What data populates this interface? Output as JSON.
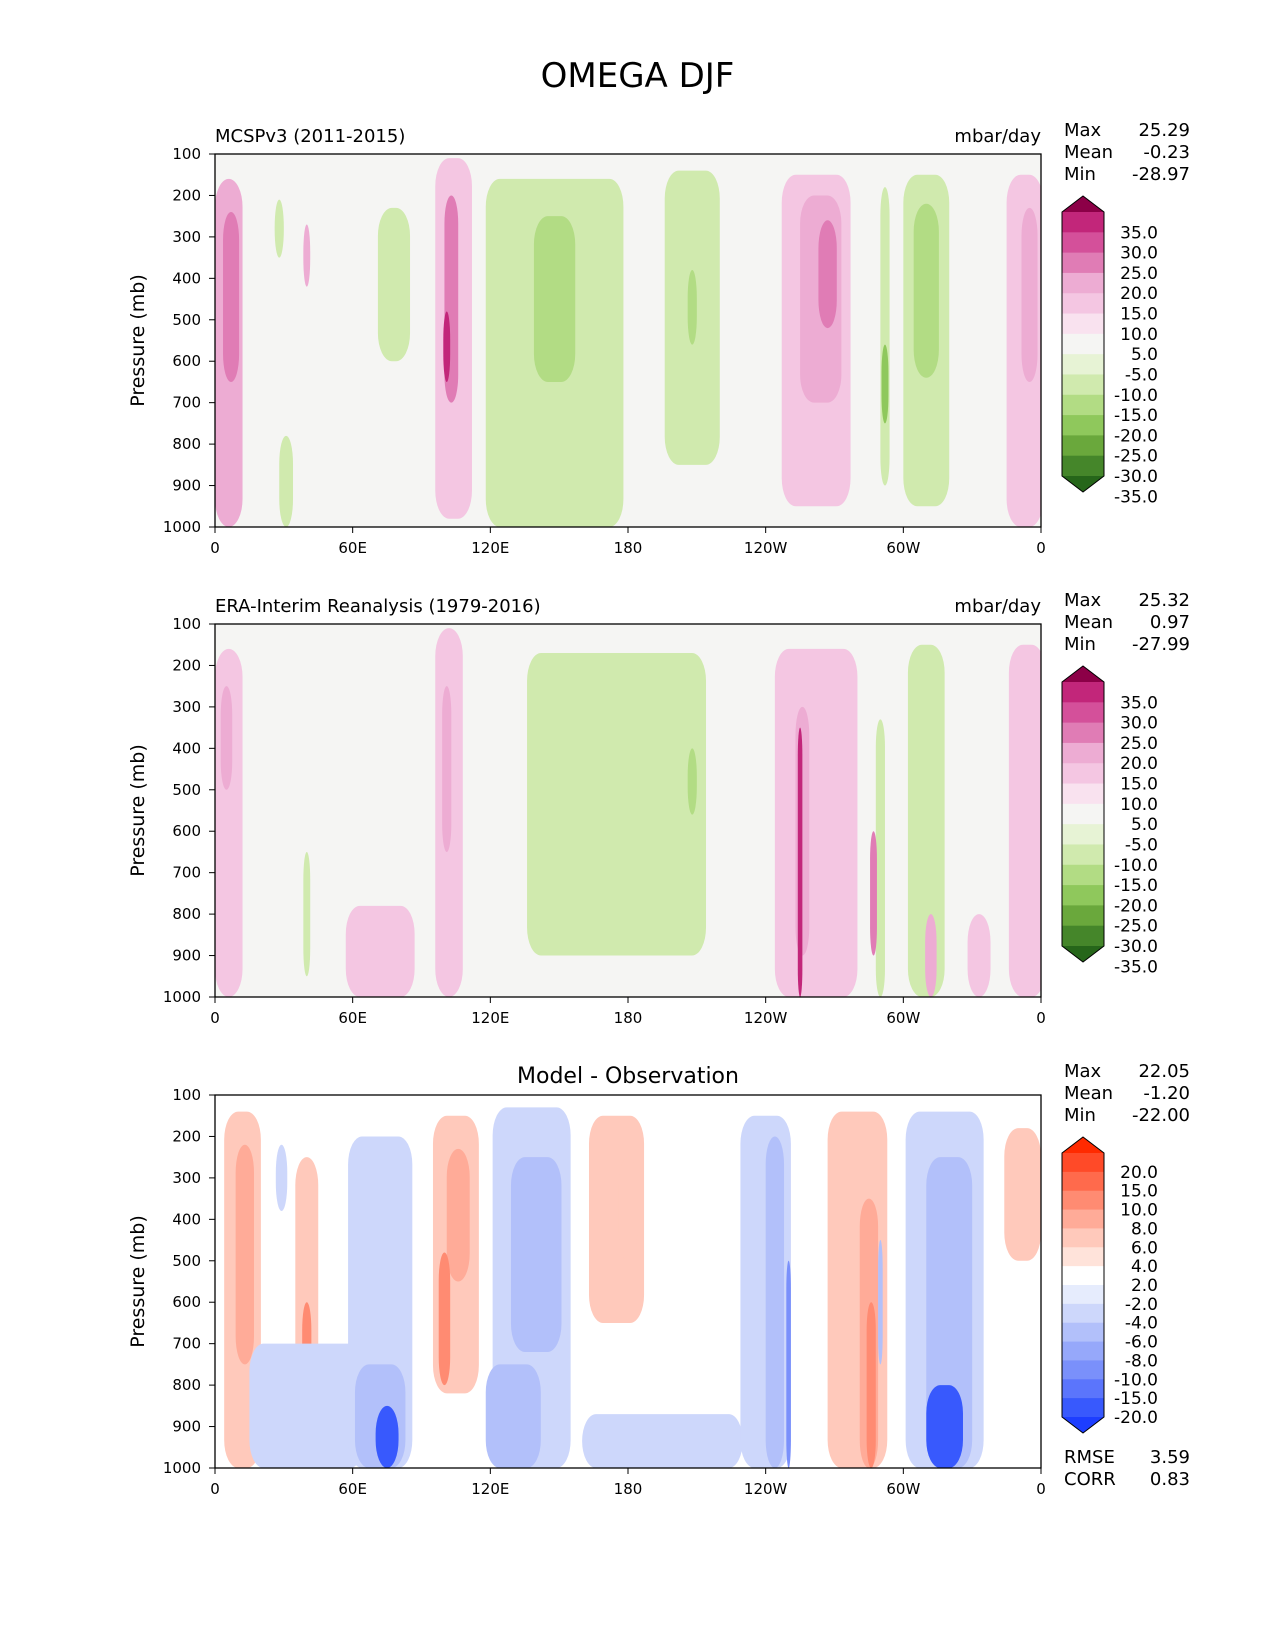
{
  "figure": {
    "title": "OMEGA DJF"
  },
  "colors": {
    "ratio_levels": [
      "#8c0047",
      "#c2267a",
      "#d4509a",
      "#e07cb5",
      "#edacd3",
      "#f4c6e2",
      "#f9e2ef",
      "#f5f5f3",
      "#e7f3d5",
      "#d0eaae",
      "#b2dc84",
      "#8fc85c",
      "#6aa83c",
      "#45862a",
      "#26661a"
    ],
    "diff_levels": [
      "#ff2a00",
      "#ff4a28",
      "#ff6a4c",
      "#ff8b72",
      "#ffab98",
      "#ffc9bb",
      "#ffe3da",
      "#ffffff",
      "#e6ecfd",
      "#cdd7fb",
      "#b2c0fa",
      "#96a8fa",
      "#7a90fb",
      "#5b75fc",
      "#3859fd",
      "#1d3eff"
    ],
    "green_levels": [
      "#e7f3d5",
      "#d0eaae",
      "#b2dc84",
      "#8fc85c",
      "#6aa83c"
    ],
    "pink_levels": [
      "#f9e2ef",
      "#f4c6e2",
      "#edacd3",
      "#e07cb5",
      "#c2267a"
    ],
    "red_levels": [
      "#ffe3da",
      "#ffc9bb",
      "#ffab98",
      "#ff8b72",
      "#ff4a28"
    ],
    "blue_levels": [
      "#e6ecfd",
      "#cdd7fb",
      "#b2c0fa",
      "#7a90fb",
      "#3859fd"
    ],
    "background": "#f5f5f3"
  },
  "chart_data": [
    {
      "type": "heatmap",
      "name": "model",
      "subtitle": "MCSPv3 (2011-2015)",
      "units": "mbar/day",
      "ylabel": "Pressure (mb)",
      "xlabel": "",
      "xticks": [
        "0",
        "60E",
        "120E",
        "180",
        "120W",
        "60W",
        "0"
      ],
      "xlim": [
        0,
        360
      ],
      "yticks": [
        "100",
        "200",
        "300",
        "400",
        "500",
        "600",
        "700",
        "800",
        "900",
        "1000"
      ],
      "ylim": [
        100,
        1000
      ],
      "stats": {
        "max_label": "Max",
        "max": "25.29",
        "mean_label": "Mean",
        "mean": "-0.23",
        "min_label": "Min",
        "min": "-28.97"
      },
      "colorbar_labels": [
        "35.0",
        "30.0",
        "25.0",
        "20.0",
        "15.0",
        "10.0",
        "5.0",
        "-5.0",
        "-10.0",
        "-15.0",
        "-20.0",
        "-25.0",
        "-30.0",
        "-35.0"
      ],
      "features": [
        {
          "lon": 6,
          "lon_w": 12,
          "p_top": 160,
          "p_bot": 1000,
          "value": 12
        },
        {
          "lon": 7,
          "lon_w": 7,
          "p_top": 240,
          "p_bot": 650,
          "value": 20
        },
        {
          "lon": 40,
          "lon_w": 3,
          "p_top": 270,
          "p_bot": 420,
          "value": 12
        },
        {
          "lon": 28,
          "lon_w": 4,
          "p_top": 210,
          "p_bot": 350,
          "value": -8
        },
        {
          "lon": 31,
          "lon_w": 6,
          "p_top": 780,
          "p_bot": 1000,
          "value": -8
        },
        {
          "lon": 78,
          "lon_w": 14,
          "p_top": 230,
          "p_bot": 600,
          "value": -8
        },
        {
          "lon": 104,
          "lon_w": 16,
          "p_top": 110,
          "p_bot": 980,
          "value": 8
        },
        {
          "lon": 103,
          "lon_w": 6,
          "p_top": 200,
          "p_bot": 700,
          "value": 17
        },
        {
          "lon": 101,
          "lon_w": 3,
          "p_top": 480,
          "p_bot": 650,
          "value": 25
        },
        {
          "lon": 148,
          "lon_w": 60,
          "p_top": 160,
          "p_bot": 1000,
          "value": -8
        },
        {
          "lon": 148,
          "lon_w": 18,
          "p_top": 250,
          "p_bot": 650,
          "value": -12
        },
        {
          "lon": 208,
          "lon_w": 24,
          "p_top": 140,
          "p_bot": 850,
          "value": -8
        },
        {
          "lon": 208,
          "lon_w": 4,
          "p_top": 380,
          "p_bot": 560,
          "value": -12
        },
        {
          "lon": 262,
          "lon_w": 30,
          "p_top": 150,
          "p_bot": 950,
          "value": 8
        },
        {
          "lon": 264,
          "lon_w": 18,
          "p_top": 200,
          "p_bot": 700,
          "value": 14
        },
        {
          "lon": 267,
          "lon_w": 8,
          "p_top": 260,
          "p_bot": 520,
          "value": 19
        },
        {
          "lon": 292,
          "lon_w": 4,
          "p_top": 180,
          "p_bot": 900,
          "value": -8
        },
        {
          "lon": 292,
          "lon_w": 3,
          "p_top": 560,
          "p_bot": 750,
          "value": -20
        },
        {
          "lon": 310,
          "lon_w": 20,
          "p_top": 150,
          "p_bot": 950,
          "value": -8
        },
        {
          "lon": 310,
          "lon_w": 11,
          "p_top": 220,
          "p_bot": 640,
          "value": -12
        },
        {
          "lon": 353,
          "lon_w": 16,
          "p_top": 150,
          "p_bot": 1000,
          "value": 8
        },
        {
          "lon": 355,
          "lon_w": 7,
          "p_top": 230,
          "p_bot": 650,
          "value": 15
        }
      ]
    },
    {
      "type": "heatmap",
      "name": "observation",
      "subtitle": "ERA-Interim Reanalysis (1979-2016)",
      "units": "mbar/day",
      "ylabel": "Pressure (mb)",
      "xlabel": "",
      "xticks": [
        "0",
        "60E",
        "120E",
        "180",
        "120W",
        "60W",
        "0"
      ],
      "xlim": [
        0,
        360
      ],
      "yticks": [
        "100",
        "200",
        "300",
        "400",
        "500",
        "600",
        "700",
        "800",
        "900",
        "1000"
      ],
      "ylim": [
        100,
        1000
      ],
      "stats": {
        "max_label": "Max",
        "max": "25.32",
        "mean_label": "Mean",
        "mean": "0.97",
        "min_label": "Min",
        "min": "-27.99"
      },
      "colorbar_labels": [
        "35.0",
        "30.0",
        "25.0",
        "20.0",
        "15.0",
        "10.0",
        "5.0",
        "-5.0",
        "-10.0",
        "-15.0",
        "-20.0",
        "-25.0",
        "-30.0",
        "-35.0"
      ],
      "features": [
        {
          "lon": 6,
          "lon_w": 12,
          "p_top": 160,
          "p_bot": 1000,
          "value": 9
        },
        {
          "lon": 5,
          "lon_w": 5,
          "p_top": 250,
          "p_bot": 500,
          "value": 14
        },
        {
          "lon": 40,
          "lon_w": 3,
          "p_top": 650,
          "p_bot": 950,
          "value": -8
        },
        {
          "lon": 72,
          "lon_w": 30,
          "p_top": 780,
          "p_bot": 1000,
          "value": 8
        },
        {
          "lon": 102,
          "lon_w": 12,
          "p_top": 110,
          "p_bot": 1000,
          "value": 8
        },
        {
          "lon": 101,
          "lon_w": 4,
          "p_top": 250,
          "p_bot": 650,
          "value": 15
        },
        {
          "lon": 175,
          "lon_w": 78,
          "p_top": 170,
          "p_bot": 900,
          "value": -8
        },
        {
          "lon": 208,
          "lon_w": 4,
          "p_top": 400,
          "p_bot": 560,
          "value": -12
        },
        {
          "lon": 262,
          "lon_w": 36,
          "p_top": 160,
          "p_bot": 1000,
          "value": 8
        },
        {
          "lon": 256,
          "lon_w": 6,
          "p_top": 300,
          "p_bot": 900,
          "value": 12
        },
        {
          "lon": 255,
          "lon_w": 2,
          "p_top": 350,
          "p_bot": 1000,
          "value": 22
        },
        {
          "lon": 290,
          "lon_w": 4,
          "p_top": 330,
          "p_bot": 1000,
          "value": -10
        },
        {
          "lon": 287,
          "lon_w": 3,
          "p_top": 600,
          "p_bot": 900,
          "value": 16
        },
        {
          "lon": 310,
          "lon_w": 16,
          "p_top": 150,
          "p_bot": 1000,
          "value": -8
        },
        {
          "lon": 312,
          "lon_w": 5,
          "p_top": 800,
          "p_bot": 1000,
          "value": 12
        },
        {
          "lon": 333,
          "lon_w": 10,
          "p_top": 800,
          "p_bot": 1000,
          "value": 9
        },
        {
          "lon": 354,
          "lon_w": 16,
          "p_top": 150,
          "p_bot": 1000,
          "value": 8
        }
      ]
    },
    {
      "type": "heatmap",
      "name": "difference",
      "subtitle": "Model - Observation",
      "units": "",
      "ylabel": "Pressure (mb)",
      "xlabel": "",
      "xticks": [
        "0",
        "60E",
        "120E",
        "180",
        "120W",
        "60W",
        "0"
      ],
      "xlim": [
        0,
        360
      ],
      "yticks": [
        "100",
        "200",
        "300",
        "400",
        "500",
        "600",
        "700",
        "800",
        "900",
        "1000"
      ],
      "ylim": [
        100,
        1000
      ],
      "stats": {
        "max_label": "Max",
        "max": "22.05",
        "mean_label": "Mean",
        "mean": "-1.20",
        "min_label": "Min",
        "min": "-22.00",
        "rmse_label": "RMSE",
        "rmse": "3.59",
        "corr_label": "CORR",
        "corr": "0.83"
      },
      "colorbar_labels": [
        "20.0",
        "15.0",
        "10.0",
        "8.0",
        "6.0",
        "4.0",
        "2.0",
        "-2.0",
        "-4.0",
        "-6.0",
        "-8.0",
        "-10.0",
        "-15.0",
        "-20.0"
      ],
      "features": [
        {
          "lon": 12,
          "lon_w": 16,
          "p_top": 140,
          "p_bot": 1000,
          "value": 4
        },
        {
          "lon": 13,
          "lon_w": 8,
          "p_top": 220,
          "p_bot": 750,
          "value": 7
        },
        {
          "lon": 29,
          "lon_w": 5,
          "p_top": 220,
          "p_bot": 380,
          "value": -4
        },
        {
          "lon": 40,
          "lon_w": 10,
          "p_top": 250,
          "p_bot": 900,
          "value": 4
        },
        {
          "lon": 40,
          "lon_w": 4,
          "p_top": 600,
          "p_bot": 900,
          "value": 12
        },
        {
          "lon": 40,
          "lon_w": 50,
          "p_top": 700,
          "p_bot": 1000,
          "value": -3
        },
        {
          "lon": 72,
          "lon_w": 28,
          "p_top": 200,
          "p_bot": 1000,
          "value": -4
        },
        {
          "lon": 72,
          "lon_w": 22,
          "p_top": 750,
          "p_bot": 1000,
          "value": -9
        },
        {
          "lon": 75,
          "lon_w": 10,
          "p_top": 850,
          "p_bot": 1000,
          "value": -16
        },
        {
          "lon": 105,
          "lon_w": 20,
          "p_top": 150,
          "p_bot": 820,
          "value": 4
        },
        {
          "lon": 106,
          "lon_w": 10,
          "p_top": 230,
          "p_bot": 550,
          "value": 10
        },
        {
          "lon": 100,
          "lon_w": 5,
          "p_top": 480,
          "p_bot": 800,
          "value": 15
        },
        {
          "lon": 138,
          "lon_w": 34,
          "p_top": 130,
          "p_bot": 1000,
          "value": -4
        },
        {
          "lon": 140,
          "lon_w": 22,
          "p_top": 250,
          "p_bot": 720,
          "value": -8
        },
        {
          "lon": 130,
          "lon_w": 24,
          "p_top": 750,
          "p_bot": 1000,
          "value": -9
        },
        {
          "lon": 175,
          "lon_w": 24,
          "p_top": 150,
          "p_bot": 650,
          "value": 3
        },
        {
          "lon": 180,
          "lon_w": 8,
          "p_top": 250,
          "p_bot": 500,
          "value": 5
        },
        {
          "lon": 195,
          "lon_w": 70,
          "p_top": 870,
          "p_bot": 1000,
          "value": -3
        },
        {
          "lon": 240,
          "lon_w": 22,
          "p_top": 150,
          "p_bot": 1000,
          "value": -4
        },
        {
          "lon": 244,
          "lon_w": 8,
          "p_top": 200,
          "p_bot": 1000,
          "value": -8
        },
        {
          "lon": 250,
          "lon_w": 2,
          "p_top": 500,
          "p_bot": 1000,
          "value": -15
        },
        {
          "lon": 280,
          "lon_w": 26,
          "p_top": 140,
          "p_bot": 1000,
          "value": 4
        },
        {
          "lon": 285,
          "lon_w": 8,
          "p_top": 350,
          "p_bot": 1000,
          "value": 8
        },
        {
          "lon": 286,
          "lon_w": 4,
          "p_top": 600,
          "p_bot": 1000,
          "value": 15
        },
        {
          "lon": 290,
          "lon_w": 2,
          "p_top": 450,
          "p_bot": 750,
          "value": -10
        },
        {
          "lon": 318,
          "lon_w": 34,
          "p_top": 140,
          "p_bot": 1000,
          "value": -4
        },
        {
          "lon": 320,
          "lon_w": 20,
          "p_top": 250,
          "p_bot": 1000,
          "value": -8
        },
        {
          "lon": 318,
          "lon_w": 16,
          "p_top": 800,
          "p_bot": 1000,
          "value": -16
        },
        {
          "lon": 352,
          "lon_w": 16,
          "p_top": 180,
          "p_bot": 500,
          "value": 3
        }
      ]
    }
  ]
}
